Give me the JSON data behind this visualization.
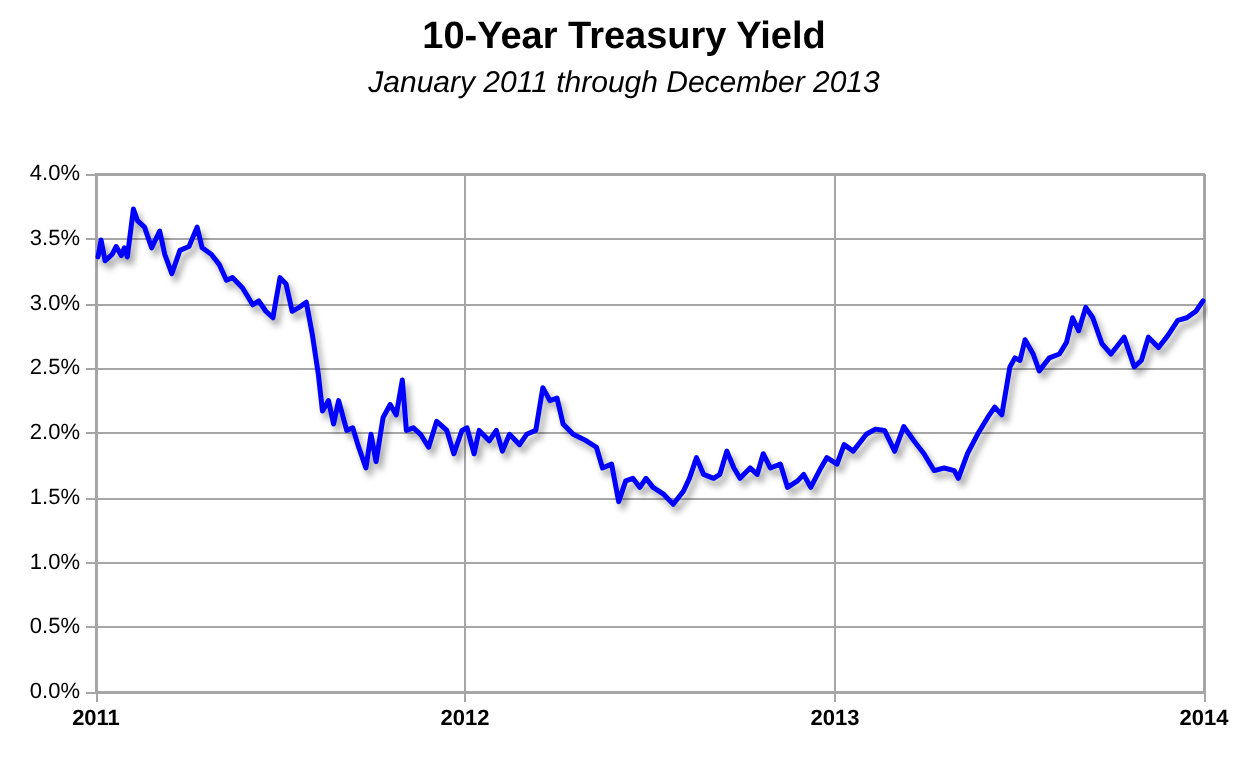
{
  "chart_data": {
    "type": "line",
    "title": "10-Year Treasury Yield",
    "subtitle": "January 2011 through December 2013",
    "x": [
      "2011-01-03",
      "2011-01-06",
      "2011-01-10",
      "2011-01-17",
      "2011-01-21",
      "2011-01-26",
      "2011-01-29",
      "2011-02-01",
      "2011-02-07",
      "2011-02-11",
      "2011-02-18",
      "2011-02-25",
      "2011-03-05",
      "2011-03-10",
      "2011-03-17",
      "2011-03-25",
      "2011-04-03",
      "2011-04-11",
      "2011-04-16",
      "2011-04-25",
      "2011-05-03",
      "2011-05-10",
      "2011-05-16",
      "2011-05-26",
      "2011-06-05",
      "2011-06-11",
      "2011-06-18",
      "2011-06-25",
      "2011-07-02",
      "2011-07-08",
      "2011-07-14",
      "2011-07-21",
      "2011-07-28",
      "2011-08-03",
      "2011-08-09",
      "2011-08-13",
      "2011-08-19",
      "2011-08-24",
      "2011-08-29",
      "2011-09-06",
      "2011-09-12",
      "2011-09-17",
      "2011-09-25",
      "2011-09-30",
      "2011-10-05",
      "2011-10-12",
      "2011-10-19",
      "2011-10-25",
      "2011-10-31",
      "2011-11-04",
      "2011-11-11",
      "2011-11-18",
      "2011-11-26",
      "2011-12-04",
      "2011-12-14",
      "2011-12-21",
      "2011-12-29",
      "2012-01-03",
      "2012-01-10",
      "2012-01-15",
      "2012-01-25",
      "2012-02-01",
      "2012-02-07",
      "2012-02-14",
      "2012-02-24",
      "2012-03-02",
      "2012-03-11",
      "2012-03-18",
      "2012-03-25",
      "2012-04-01",
      "2012-04-07",
      "2012-04-17",
      "2012-04-30",
      "2012-05-10",
      "2012-05-16",
      "2012-05-25",
      "2012-06-01",
      "2012-06-08",
      "2012-06-15",
      "2012-06-22",
      "2012-06-28",
      "2012-07-05",
      "2012-07-15",
      "2012-07-25",
      "2012-08-04",
      "2012-08-10",
      "2012-08-17",
      "2012-08-24",
      "2012-09-03",
      "2012-09-09",
      "2012-09-16",
      "2012-09-23",
      "2012-09-29",
      "2012-10-09",
      "2012-10-16",
      "2012-10-22",
      "2012-10-29",
      "2012-11-08",
      "2012-11-15",
      "2012-11-25",
      "2012-12-01",
      "2012-12-08",
      "2012-12-18",
      "2012-12-24",
      "2013-01-03",
      "2013-01-10",
      "2013-01-19",
      "2013-02-01",
      "2013-02-10",
      "2013-02-19",
      "2013-03-01",
      "2013-03-10",
      "2013-03-20",
      "2013-03-30",
      "2013-04-09",
      "2013-04-19",
      "2013-04-29",
      "2013-05-03",
      "2013-05-12",
      "2013-05-22",
      "2013-06-01",
      "2013-06-08",
      "2013-06-15",
      "2013-06-23",
      "2013-06-28",
      "2013-07-03",
      "2013-07-08",
      "2013-07-16",
      "2013-07-22",
      "2013-08-01",
      "2013-08-11",
      "2013-08-18",
      "2013-08-24",
      "2013-08-30",
      "2013-09-06",
      "2013-09-13",
      "2013-09-22",
      "2013-10-01",
      "2013-10-14",
      "2013-10-24",
      "2013-10-31",
      "2013-11-07",
      "2013-11-17",
      "2013-11-26",
      "2013-12-06",
      "2013-12-15",
      "2013-12-24",
      "2013-12-31"
    ],
    "series": [
      {
        "color": "#0000ff",
        "values": [
          3.36,
          3.49,
          3.33,
          3.38,
          3.44,
          3.37,
          3.43,
          3.36,
          3.73,
          3.64,
          3.59,
          3.43,
          3.56,
          3.38,
          3.23,
          3.41,
          3.44,
          3.59,
          3.43,
          3.38,
          3.3,
          3.18,
          3.2,
          3.12,
          2.99,
          3.02,
          2.94,
          2.89,
          3.2,
          3.15,
          2.94,
          2.97,
          3.01,
          2.76,
          2.45,
          2.17,
          2.25,
          2.07,
          2.25,
          2.02,
          2.04,
          1.91,
          1.73,
          1.99,
          1.78,
          2.12,
          2.22,
          2.14,
          2.41,
          2.02,
          2.04,
          1.99,
          1.89,
          2.09,
          2.02,
          1.84,
          2.02,
          2.04,
          1.84,
          2.02,
          1.94,
          2.02,
          1.86,
          1.99,
          1.91,
          1.99,
          2.02,
          2.35,
          2.25,
          2.27,
          2.07,
          1.99,
          1.94,
          1.89,
          1.73,
          1.76,
          1.47,
          1.63,
          1.65,
          1.58,
          1.65,
          1.58,
          1.53,
          1.45,
          1.55,
          1.65,
          1.81,
          1.68,
          1.65,
          1.68,
          1.86,
          1.73,
          1.65,
          1.73,
          1.68,
          1.84,
          1.73,
          1.76,
          1.58,
          1.63,
          1.68,
          1.58,
          1.73,
          1.81,
          1.76,
          1.91,
          1.86,
          1.99,
          2.03,
          2.02,
          1.86,
          2.05,
          1.94,
          1.84,
          1.71,
          1.73,
          1.71,
          1.65,
          1.84,
          1.99,
          2.12,
          2.2,
          2.14,
          2.51,
          2.58,
          2.56,
          2.72,
          2.61,
          2.48,
          2.58,
          2.61,
          2.7,
          2.89,
          2.79,
          2.97,
          2.89,
          2.69,
          2.61,
          2.74,
          2.51,
          2.56,
          2.74,
          2.66,
          2.75,
          2.87,
          2.89,
          2.94,
          3.02
        ]
      }
    ],
    "xlim": [
      "2011",
      "2014"
    ],
    "xticks": [
      "2011",
      "2012",
      "2013",
      "2014"
    ],
    "ylim": [
      0,
      4
    ],
    "yticks": [
      {
        "value": 0,
        "label": "0.0%"
      },
      {
        "value": 0.5,
        "label": "0.5%"
      },
      {
        "value": 1,
        "label": "1.0%"
      },
      {
        "value": 1.5,
        "label": "1.5%"
      },
      {
        "value": 2,
        "label": "2.0%"
      },
      {
        "value": 2.5,
        "label": "2.5%"
      },
      {
        "value": 3,
        "label": "3.0%"
      },
      {
        "value": 3.5,
        "label": "3.5%"
      },
      {
        "value": 4,
        "label": "4.0%"
      }
    ],
    "grid": true,
    "marker": "none",
    "line_style": "solid"
  }
}
